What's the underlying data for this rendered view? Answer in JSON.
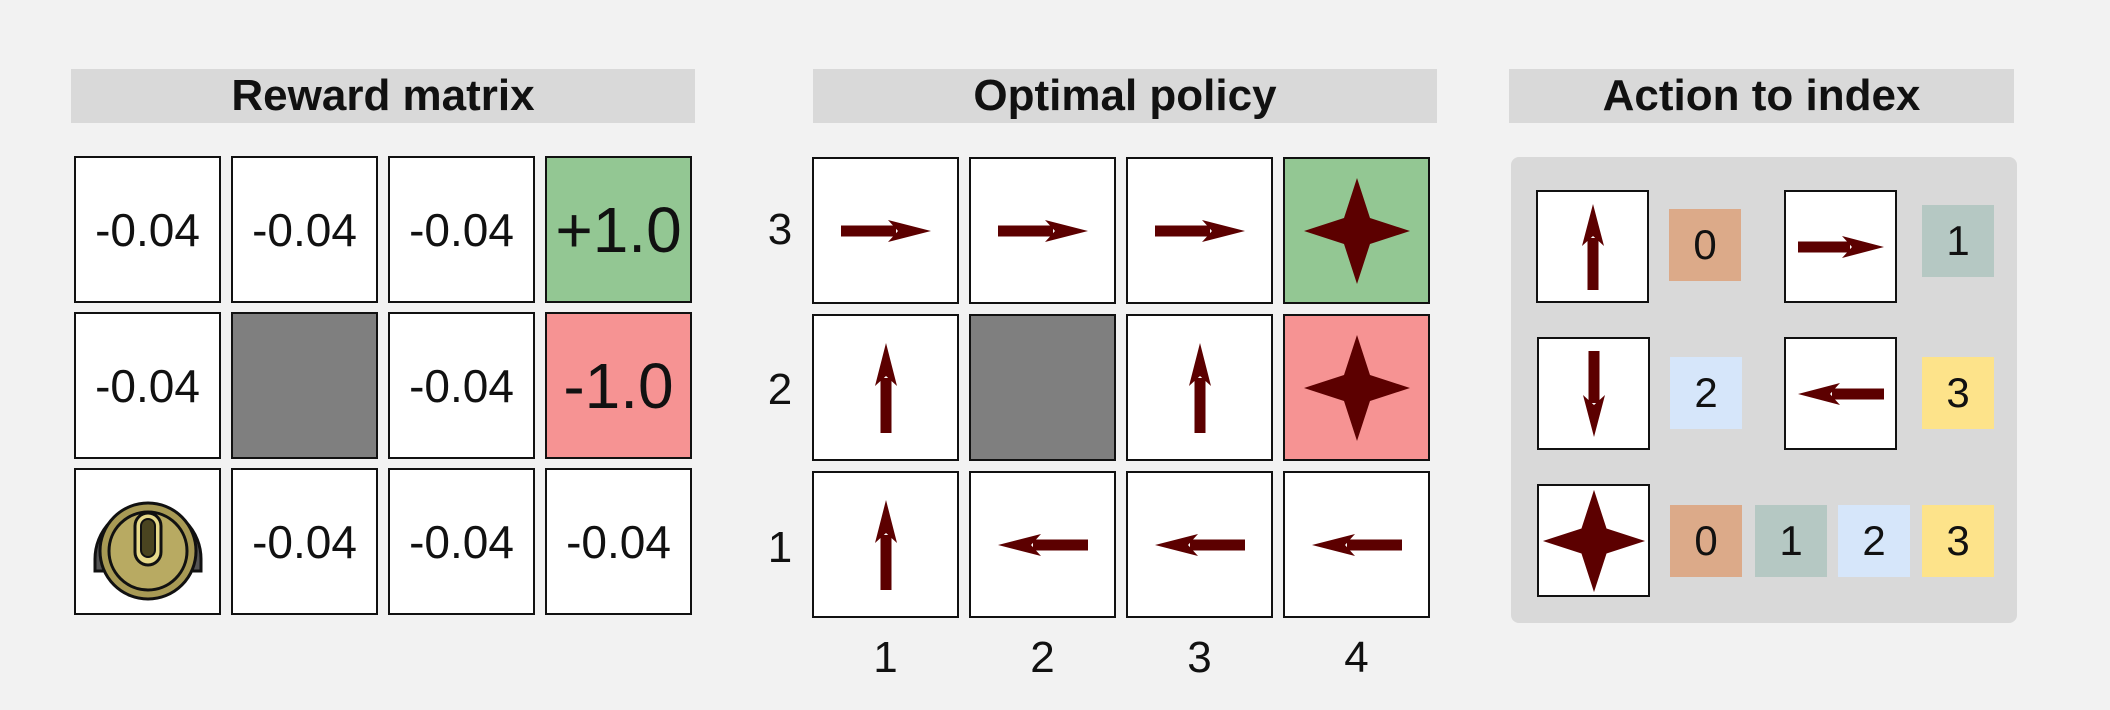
{
  "titles": {
    "reward": "Reward matrix",
    "policy": "Optimal policy",
    "action": "Action to index"
  },
  "reward_grid": {
    "rows": [
      [
        {
          "type": "value",
          "text": "-0.04"
        },
        {
          "type": "value",
          "text": "-0.04"
        },
        {
          "type": "value",
          "text": "-0.04"
        },
        {
          "type": "goal",
          "text": "+1.0"
        }
      ],
      [
        {
          "type": "value",
          "text": "-0.04"
        },
        {
          "type": "wall",
          "text": ""
        },
        {
          "type": "value",
          "text": "-0.04"
        },
        {
          "type": "pit",
          "text": "-1.0"
        }
      ],
      [
        {
          "type": "robot",
          "text": ""
        },
        {
          "type": "value",
          "text": "-0.04"
        },
        {
          "type": "value",
          "text": "-0.04"
        },
        {
          "type": "value",
          "text": "-0.04"
        }
      ]
    ]
  },
  "policy_grid": {
    "row_labels": [
      "3",
      "2",
      "1"
    ],
    "col_labels": [
      "1",
      "2",
      "3",
      "4"
    ],
    "rows": [
      [
        {
          "type": "arrow",
          "icon": "arrow-right-icon"
        },
        {
          "type": "arrow",
          "icon": "arrow-right-icon"
        },
        {
          "type": "arrow",
          "icon": "arrow-right-icon"
        },
        {
          "type": "goal",
          "icon": "star-icon"
        }
      ],
      [
        {
          "type": "arrow",
          "icon": "arrow-up-icon"
        },
        {
          "type": "wall",
          "icon": ""
        },
        {
          "type": "arrow",
          "icon": "arrow-up-icon"
        },
        {
          "type": "pit",
          "icon": "star-icon"
        }
      ],
      [
        {
          "type": "arrow",
          "icon": "arrow-up-icon"
        },
        {
          "type": "arrow",
          "icon": "arrow-left-icon"
        },
        {
          "type": "arrow",
          "icon": "arrow-left-icon"
        },
        {
          "type": "arrow",
          "icon": "arrow-left-icon"
        }
      ]
    ]
  },
  "action_index": {
    "up": {
      "icon": "arrow-up-icon",
      "index": "0"
    },
    "right": {
      "icon": "arrow-right-icon",
      "index": "1"
    },
    "down": {
      "icon": "arrow-down-icon",
      "index": "2"
    },
    "left": {
      "icon": "arrow-left-icon",
      "index": "3"
    },
    "terminal": {
      "icon": "star-icon",
      "indices": [
        "0",
        "1",
        "2",
        "3"
      ]
    }
  },
  "colors": {
    "arrow": "#5c0000",
    "goal": "#93c793",
    "pit": "#f69393",
    "wall": "#7f7f7f",
    "index_0": "#dcaa89",
    "index_1": "#b5c8c3",
    "index_2": "#d6e6fa",
    "index_3": "#fde38a"
  }
}
